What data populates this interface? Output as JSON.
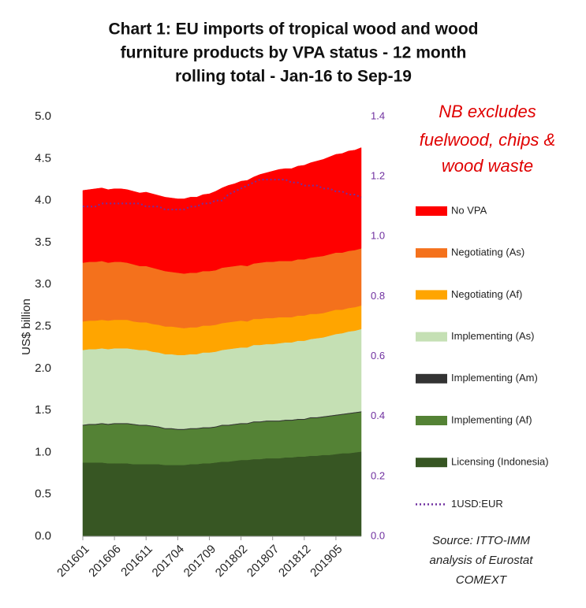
{
  "chart_data": {
    "type": "stacked_area",
    "title": [
      "Chart 1: EU imports of tropical wood and wood",
      "furniture products by VPA status - 12 month",
      "rolling total - Jan-16 to Sep-19"
    ],
    "annotation": [
      "NB excludes",
      "fuelwood, chips &",
      "wood waste"
    ],
    "source": [
      "Source: ITTO-IMM",
      "analysis of Eurostat",
      "COMEXT"
    ],
    "y_label": "US$ billion",
    "categories": [
      "201601",
      null,
      null,
      null,
      null,
      "201606",
      null,
      null,
      null,
      null,
      "201611",
      null,
      null,
      null,
      null,
      "201704",
      null,
      null,
      null,
      null,
      "201709",
      null,
      null,
      null,
      null,
      "201802",
      null,
      null,
      null,
      null,
      "201807",
      null,
      null,
      null,
      null,
      "201812",
      null,
      null,
      null,
      null,
      "201905",
      null,
      null,
      null,
      null
    ],
    "ylim": [
      0,
      5
    ],
    "yticks": [
      {
        "value": 0,
        "label": "0.0"
      },
      0.5,
      {
        "value": 1,
        "label": "1.0"
      },
      1.5,
      {
        "value": 2,
        "label": "2.0"
      },
      2.5,
      {
        "value": 3,
        "label": "3.0"
      },
      3.5,
      {
        "value": 4,
        "label": "4.0"
      },
      4.5,
      {
        "value": 5,
        "label": "5.0"
      }
    ],
    "y2lim": [
      0,
      1.4
    ],
    "y2ticks": [
      {
        "value": 0,
        "label": "0.0"
      },
      0.2,
      0.4,
      0.6,
      0.8,
      {
        "value": 1,
        "label": "1.0"
      },
      1.2,
      1.4
    ],
    "series": [
      {
        "name": "Licensing (Indonesia)",
        "color": "#375623",
        "values": [
          0.88,
          0.88,
          0.88,
          0.88,
          0.87,
          0.87,
          0.87,
          0.87,
          0.86,
          0.86,
          0.86,
          0.86,
          0.86,
          0.85,
          0.85,
          0.85,
          0.85,
          0.86,
          0.86,
          0.87,
          0.87,
          0.88,
          0.89,
          0.89,
          0.9,
          0.91,
          0.91,
          0.92,
          0.92,
          0.93,
          0.93,
          0.93,
          0.94,
          0.94,
          0.95,
          0.95,
          0.96,
          0.96,
          0.97,
          0.97,
          0.98,
          0.99,
          0.99,
          1.0,
          1.01
        ]
      },
      {
        "name": "Implementing (Af)",
        "color": "#548235",
        "values": [
          0.44,
          0.45,
          0.45,
          0.46,
          0.46,
          0.47,
          0.47,
          0.47,
          0.47,
          0.46,
          0.46,
          0.45,
          0.44,
          0.43,
          0.43,
          0.42,
          0.42,
          0.42,
          0.42,
          0.42,
          0.42,
          0.42,
          0.43,
          0.43,
          0.43,
          0.43,
          0.43,
          0.44,
          0.44,
          0.44,
          0.44,
          0.44,
          0.44,
          0.44,
          0.44,
          0.44,
          0.45,
          0.45,
          0.45,
          0.46,
          0.46,
          0.46,
          0.47,
          0.47,
          0.47
        ]
      },
      {
        "name": "Implementing (Am)",
        "color": "#333333",
        "values": [
          0.01,
          0.01,
          0.01,
          0.01,
          0.01,
          0.01,
          0.01,
          0.01,
          0.01,
          0.01,
          0.01,
          0.01,
          0.01,
          0.01,
          0.01,
          0.01,
          0.01,
          0.01,
          0.01,
          0.01,
          0.01,
          0.01,
          0.01,
          0.01,
          0.01,
          0.01,
          0.01,
          0.01,
          0.01,
          0.01,
          0.01,
          0.01,
          0.01,
          0.01,
          0.01,
          0.01,
          0.01,
          0.01,
          0.01,
          0.01,
          0.01,
          0.01,
          0.01,
          0.01,
          0.01
        ]
      },
      {
        "name": "Implementing (As)",
        "color": "#c5e0b4",
        "values": [
          0.89,
          0.89,
          0.89,
          0.89,
          0.89,
          0.89,
          0.89,
          0.89,
          0.89,
          0.89,
          0.89,
          0.88,
          0.88,
          0.88,
          0.88,
          0.88,
          0.88,
          0.88,
          0.88,
          0.89,
          0.89,
          0.89,
          0.89,
          0.9,
          0.9,
          0.9,
          0.9,
          0.91,
          0.91,
          0.91,
          0.91,
          0.92,
          0.92,
          0.92,
          0.93,
          0.93,
          0.93,
          0.94,
          0.94,
          0.95,
          0.96,
          0.96,
          0.97,
          0.97,
          0.98
        ]
      },
      {
        "name": "Negotiating (Af)",
        "color": "#ffa500",
        "values": [
          0.34,
          0.34,
          0.34,
          0.34,
          0.34,
          0.34,
          0.34,
          0.34,
          0.33,
          0.33,
          0.33,
          0.33,
          0.33,
          0.33,
          0.33,
          0.33,
          0.32,
          0.32,
          0.32,
          0.32,
          0.32,
          0.32,
          0.32,
          0.32,
          0.32,
          0.32,
          0.31,
          0.31,
          0.31,
          0.31,
          0.31,
          0.31,
          0.3,
          0.3,
          0.3,
          0.3,
          0.3,
          0.29,
          0.29,
          0.29,
          0.29,
          0.28,
          0.28,
          0.28,
          0.28
        ]
      },
      {
        "name": "Negotiating (As)",
        "color": "#f4711c",
        "values": [
          0.7,
          0.7,
          0.7,
          0.7,
          0.69,
          0.69,
          0.69,
          0.68,
          0.68,
          0.67,
          0.67,
          0.67,
          0.66,
          0.66,
          0.65,
          0.65,
          0.65,
          0.65,
          0.65,
          0.65,
          0.65,
          0.65,
          0.66,
          0.66,
          0.66,
          0.66,
          0.66,
          0.66,
          0.67,
          0.67,
          0.67,
          0.67,
          0.67,
          0.67,
          0.67,
          0.67,
          0.67,
          0.68,
          0.68,
          0.68,
          0.68,
          0.68,
          0.68,
          0.68,
          0.68
        ]
      },
      {
        "name": "No VPA",
        "color": "#ff0000",
        "values": [
          0.86,
          0.86,
          0.87,
          0.87,
          0.87,
          0.87,
          0.87,
          0.87,
          0.87,
          0.87,
          0.88,
          0.88,
          0.88,
          0.88,
          0.88,
          0.88,
          0.89,
          0.9,
          0.9,
          0.91,
          0.92,
          0.94,
          0.95,
          0.97,
          0.98,
          1.0,
          1.02,
          1.03,
          1.05,
          1.06,
          1.08,
          1.09,
          1.1,
          1.1,
          1.11,
          1.12,
          1.13,
          1.14,
          1.15,
          1.16,
          1.17,
          1.18,
          1.19,
          1.19,
          1.2
        ]
      },
      {
        "name": "1USD:EUR",
        "color": "#7030a0",
        "axis": "y2",
        "line_style": "dotted",
        "values": [
          1.1,
          1.1,
          1.1,
          1.11,
          1.11,
          1.11,
          1.11,
          1.11,
          1.11,
          1.11,
          1.1,
          1.1,
          1.1,
          1.09,
          1.09,
          1.09,
          1.09,
          1.1,
          1.1,
          1.11,
          1.11,
          1.12,
          1.12,
          1.14,
          1.15,
          1.16,
          1.17,
          1.18,
          1.19,
          1.19,
          1.19,
          1.19,
          1.19,
          1.18,
          1.18,
          1.17,
          1.17,
          1.17,
          1.16,
          1.16,
          1.15,
          1.15,
          1.14,
          1.14,
          1.13
        ]
      }
    ]
  }
}
